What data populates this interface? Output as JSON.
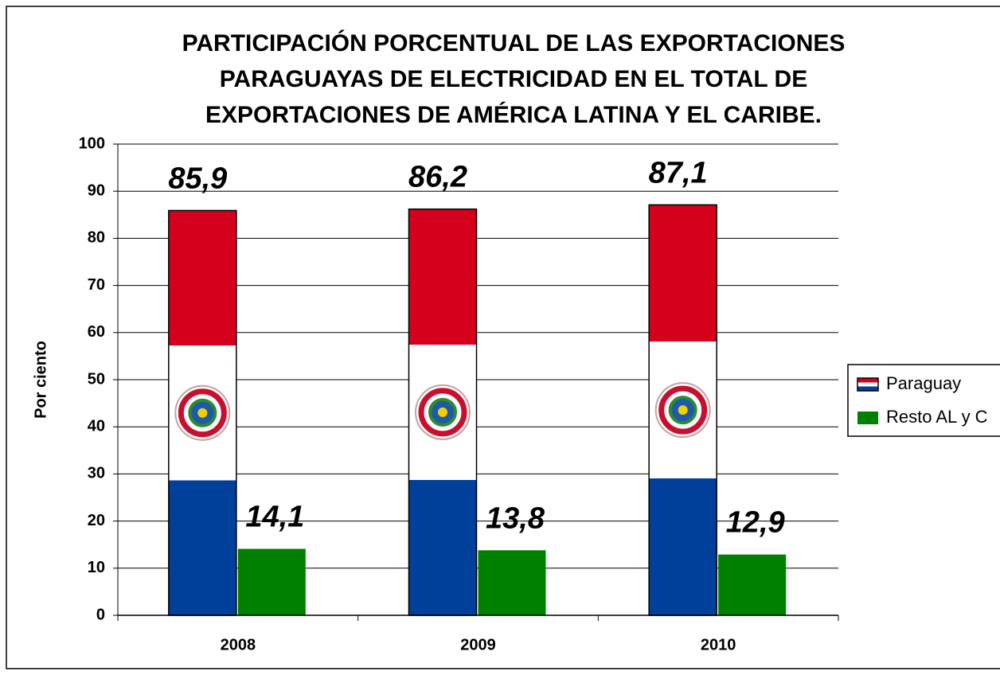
{
  "chart_data": {
    "type": "bar",
    "title": [
      "PARTICIPACIÓN PORCENTUAL DE LAS EXPORTACIONES",
      "PARAGUAYAS DE ELECTRICIDAD EN EL TOTAL DE",
      "EXPORTACIONES DE AMÉRICA LATINA Y EL CARIBE."
    ],
    "y_label": "Por ciento",
    "categories": [
      "2008",
      "2009",
      "2010"
    ],
    "series": [
      {
        "name": "Paraguay",
        "colors": [
          "#d5001c",
          "#ffffff",
          "#003f9a"
        ],
        "values": [
          85.9,
          86.2,
          87.1
        ],
        "value_labels": [
          "85,9",
          "86,2",
          "87,1"
        ]
      },
      {
        "name": "Resto AL y C",
        "color": "#008000",
        "values": [
          14.1,
          13.8,
          12.9
        ],
        "value_labels": [
          "14,1",
          "13,8",
          "12,9"
        ]
      }
    ],
    "ylim": [
      0,
      100
    ],
    "yticks": [
      0,
      10,
      20,
      30,
      40,
      50,
      60,
      70,
      80,
      90,
      100
    ],
    "grid": true,
    "legend": "right"
  }
}
